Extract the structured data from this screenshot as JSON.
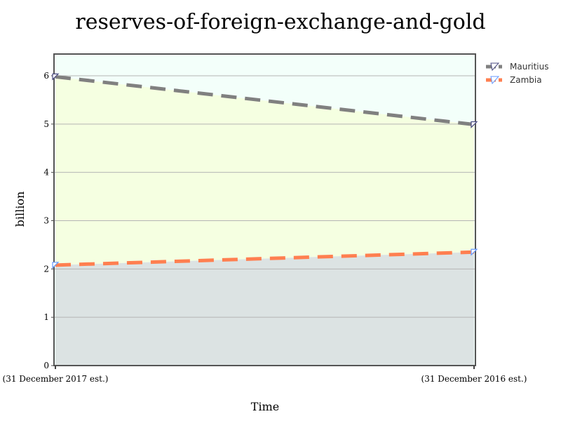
{
  "chart_data": {
    "type": "area",
    "title": "reserves-of-foreign-exchange-and-gold",
    "xlabel": "Time",
    "ylabel": "billion",
    "categories": [
      "(31 December 2017 est.)",
      "(31 December 2016 est.)"
    ],
    "ylim": [
      0,
      6.45
    ],
    "yticks": [
      "0",
      "1",
      "2",
      "3",
      "4",
      "5",
      "6"
    ],
    "grid": true,
    "legend_position": "top-right",
    "series": [
      {
        "name": "Mauritius",
        "values": [
          5.98,
          4.99
        ],
        "line_color": "#808080",
        "marker_color": "#4b4b82",
        "fill_color": "#f5ffe1"
      },
      {
        "name": "Zambia",
        "values": [
          2.08,
          2.35
        ],
        "line_color": "#ff7f50",
        "marker_color": "#6699ff",
        "fill_color": "#dce3e3"
      }
    ],
    "background_fill": "#f3fffa"
  }
}
